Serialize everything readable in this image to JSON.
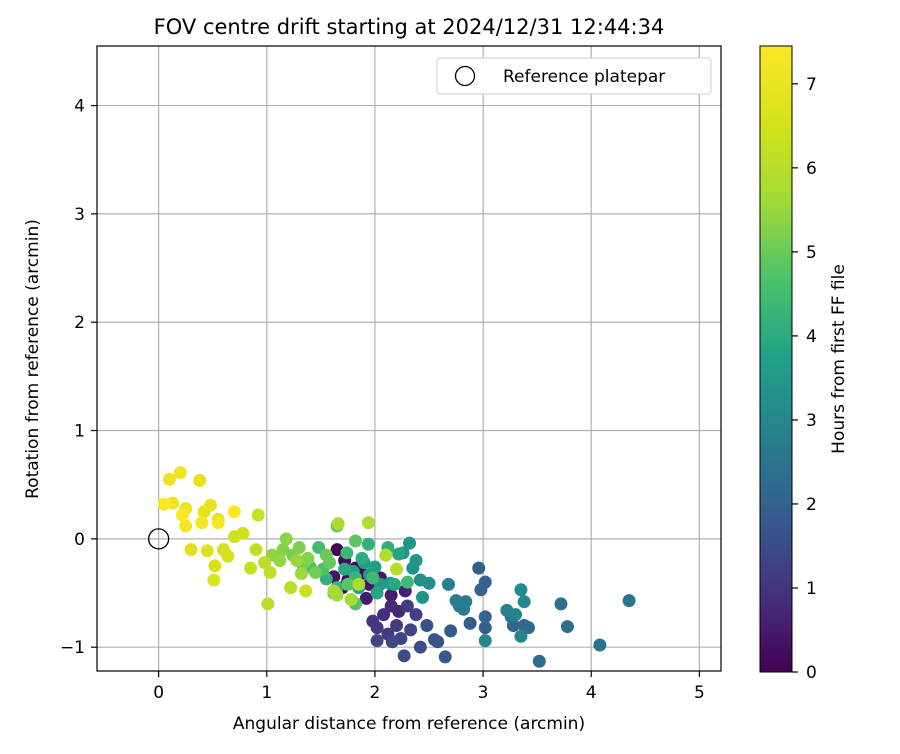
{
  "chart_data": {
    "type": "scatter",
    "title": "FOV centre drift starting at 2024/12/31 12:44:34",
    "xlabel": "Angular distance from reference (arcmin)",
    "ylabel": "Rotation from reference (arcmin)",
    "xlim": [
      -0.57,
      5.2
    ],
    "ylim": [
      -1.22,
      4.55
    ],
    "xticks": [
      0,
      1,
      2,
      3,
      4,
      5
    ],
    "yticks": [
      -1,
      0,
      1,
      2,
      3,
      4
    ],
    "grid": true,
    "legend": {
      "position": "top-right",
      "label": "Reference platepar"
    },
    "reference_point": {
      "x": 0,
      "y": 0,
      "label": "Reference platepar"
    },
    "colorbar": {
      "label": "Hours from first FF file",
      "min": 0,
      "max": 7.45,
      "ticks": [
        0,
        1,
        2,
        3,
        4,
        5,
        6,
        7
      ],
      "colormap": "viridis"
    },
    "series": [
      {
        "points": [
          [
            1.65,
            -0.1,
            0.05
          ],
          [
            1.72,
            -0.2,
            0.1
          ],
          [
            1.82,
            -0.27,
            0.15
          ],
          [
            1.88,
            -0.32,
            0.2
          ],
          [
            1.75,
            -0.38,
            0.25
          ],
          [
            1.7,
            -0.45,
            0.3
          ],
          [
            1.62,
            -0.35,
            0.35
          ],
          [
            1.95,
            -0.42,
            0.4
          ],
          [
            2.05,
            -0.36,
            0.45
          ],
          [
            1.92,
            -0.55,
            0.5
          ],
          [
            2.15,
            -0.52,
            0.55
          ],
          [
            2.28,
            -0.48,
            0.6
          ],
          [
            2.22,
            -0.67,
            0.7
          ],
          [
            2.15,
            -0.62,
            0.8
          ],
          [
            2.08,
            -0.7,
            0.9
          ],
          [
            1.98,
            -0.76,
            1.0
          ],
          [
            2.02,
            -0.82,
            1.05
          ],
          [
            2.12,
            -0.88,
            1.1
          ],
          [
            2.2,
            -0.8,
            1.15
          ],
          [
            2.3,
            -0.62,
            1.2
          ],
          [
            2.38,
            -0.7,
            1.25
          ],
          [
            2.33,
            -0.84,
            1.3
          ],
          [
            2.24,
            -0.92,
            1.35
          ],
          [
            2.02,
            -0.94,
            1.4
          ],
          [
            2.16,
            -0.95,
            1.45
          ],
          [
            2.27,
            -1.08,
            1.5
          ],
          [
            2.42,
            -1.0,
            1.55
          ],
          [
            2.58,
            -0.95,
            1.6
          ],
          [
            2.48,
            -0.8,
            1.65
          ],
          [
            2.55,
            -0.93,
            1.7
          ],
          [
            2.65,
            -1.09,
            1.75
          ],
          [
            2.7,
            -0.85,
            1.8
          ],
          [
            2.88,
            -0.78,
            1.85
          ],
          [
            3.02,
            -0.82,
            1.9
          ],
          [
            2.96,
            -0.27,
            1.95
          ],
          [
            3.02,
            -0.4,
            2.0
          ],
          [
            2.98,
            -0.47,
            2.05
          ],
          [
            3.02,
            -0.72,
            2.1
          ],
          [
            3.28,
            -0.8,
            2.15
          ],
          [
            3.38,
            -0.8,
            2.2
          ],
          [
            3.42,
            -0.82,
            2.25
          ],
          [
            3.52,
            -1.13,
            2.3
          ],
          [
            3.72,
            -0.6,
            2.35
          ],
          [
            3.78,
            -0.81,
            2.4
          ],
          [
            4.08,
            -0.98,
            2.45
          ],
          [
            4.35,
            -0.57,
            2.5
          ],
          [
            3.26,
            -0.72,
            2.55
          ],
          [
            2.78,
            -0.62,
            2.6
          ],
          [
            2.84,
            -0.58,
            2.65
          ],
          [
            2.75,
            -0.57,
            2.7
          ],
          [
            2.82,
            -0.65,
            2.75
          ],
          [
            2.68,
            -0.42,
            2.8
          ],
          [
            3.22,
            -0.66,
            2.85
          ],
          [
            3.3,
            -0.7,
            2.9
          ],
          [
            3.38,
            -0.58,
            2.95
          ],
          [
            3.35,
            -0.9,
            3.0
          ],
          [
            3.02,
            -0.94,
            3.05
          ],
          [
            3.35,
            -0.47,
            3.1
          ],
          [
            2.5,
            -0.41,
            3.15
          ],
          [
            2.42,
            -0.38,
            3.2
          ],
          [
            2.44,
            -0.54,
            3.25
          ],
          [
            2.35,
            -0.27,
            3.3
          ],
          [
            2.38,
            -0.2,
            3.35
          ],
          [
            2.32,
            -0.04,
            3.4
          ],
          [
            2.26,
            -0.13,
            3.45
          ],
          [
            2.14,
            -0.41,
            3.5
          ],
          [
            2.05,
            -0.42,
            3.55
          ],
          [
            1.95,
            -0.33,
            3.6
          ],
          [
            2.0,
            -0.26,
            3.65
          ],
          [
            1.9,
            -0.22,
            3.7
          ],
          [
            1.8,
            -0.3,
            3.75
          ],
          [
            1.85,
            -0.45,
            3.8
          ],
          [
            2.22,
            -0.14,
            3.85
          ],
          [
            2.02,
            -0.5,
            3.9
          ],
          [
            2.18,
            -0.42,
            3.95
          ],
          [
            1.72,
            -0.28,
            4.0
          ],
          [
            1.88,
            -0.18,
            4.05
          ],
          [
            2.12,
            -0.08,
            4.1
          ],
          [
            1.94,
            -0.05,
            4.15
          ],
          [
            1.55,
            -0.37,
            4.2
          ],
          [
            1.65,
            -0.45,
            4.25
          ],
          [
            1.82,
            -0.36,
            4.3
          ],
          [
            1.74,
            -0.13,
            4.35
          ],
          [
            1.98,
            -0.36,
            4.4
          ],
          [
            2.3,
            -0.4,
            4.45
          ],
          [
            1.48,
            -0.08,
            4.5
          ],
          [
            1.4,
            -0.26,
            4.55
          ],
          [
            1.34,
            -0.28,
            4.6
          ],
          [
            1.52,
            -0.28,
            4.65
          ],
          [
            1.82,
            -0.6,
            4.7
          ],
          [
            1.62,
            -0.5,
            4.75
          ],
          [
            1.75,
            -0.42,
            4.8
          ],
          [
            1.82,
            -0.02,
            4.85
          ],
          [
            1.65,
            0.12,
            4.9
          ],
          [
            1.58,
            -0.22,
            4.95
          ],
          [
            1.55,
            -0.15,
            5.0
          ],
          [
            1.45,
            -0.31,
            5.05
          ],
          [
            1.35,
            -0.22,
            5.1
          ],
          [
            1.24,
            -0.15,
            5.15
          ],
          [
            1.3,
            -0.08,
            5.2
          ],
          [
            1.38,
            -0.18,
            5.25
          ],
          [
            1.15,
            -0.1,
            5.3
          ],
          [
            1.18,
            0.0,
            5.35
          ],
          [
            1.05,
            -0.15,
            5.4
          ],
          [
            1.12,
            -0.2,
            5.45
          ],
          [
            1.28,
            -0.2,
            5.5
          ],
          [
            1.32,
            -0.32,
            5.55
          ],
          [
            1.62,
            -0.48,
            5.6
          ],
          [
            1.65,
            -0.52,
            5.65
          ],
          [
            1.78,
            -0.56,
            5.7
          ],
          [
            1.85,
            -0.42,
            5.75
          ],
          [
            1.66,
            0.14,
            5.8
          ],
          [
            1.94,
            0.15,
            5.85
          ],
          [
            2.1,
            -0.15,
            5.9
          ],
          [
            2.2,
            -0.28,
            5.95
          ],
          [
            1.22,
            -0.45,
            6.0
          ],
          [
            1.01,
            -0.6,
            6.05
          ],
          [
            0.98,
            -0.22,
            6.1
          ],
          [
            1.03,
            -0.31,
            6.15
          ],
          [
            0.9,
            -0.1,
            6.2
          ],
          [
            0.85,
            -0.27,
            6.25
          ],
          [
            0.92,
            0.22,
            6.3
          ],
          [
            1.36,
            -0.48,
            6.35
          ],
          [
            0.7,
            0.02,
            6.4
          ],
          [
            0.78,
            0.05,
            6.45
          ],
          [
            0.6,
            -0.1,
            6.5
          ],
          [
            0.64,
            -0.16,
            6.55
          ],
          [
            0.52,
            -0.25,
            6.6
          ],
          [
            0.51,
            -0.38,
            6.65
          ],
          [
            0.45,
            -0.11,
            6.7
          ],
          [
            0.3,
            -0.1,
            6.75
          ],
          [
            0.38,
            0.54,
            6.8
          ],
          [
            0.55,
            0.18,
            6.85
          ],
          [
            0.48,
            0.31,
            6.9
          ],
          [
            0.42,
            0.25,
            6.95
          ],
          [
            0.25,
            0.28,
            7.0
          ],
          [
            0.1,
            0.55,
            7.05
          ],
          [
            0.2,
            0.61,
            7.1
          ],
          [
            0.13,
            0.33,
            7.15
          ],
          [
            0.25,
            0.12,
            7.2
          ],
          [
            0.4,
            0.15,
            7.25
          ],
          [
            0.55,
            0.15,
            7.3
          ],
          [
            0.7,
            0.25,
            7.35
          ],
          [
            0.22,
            0.22,
            7.4
          ],
          [
            0.05,
            0.32,
            7.45
          ]
        ]
      }
    ]
  }
}
